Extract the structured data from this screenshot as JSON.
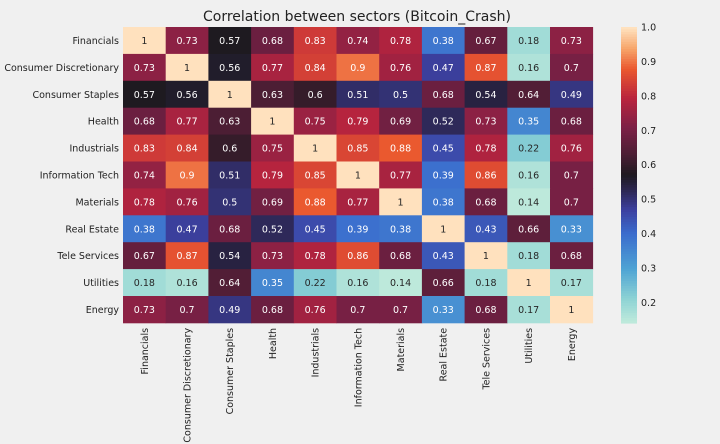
{
  "chart_data": {
    "type": "heatmap",
    "title": "Correlation between sectors (Bitcoin_Crash)",
    "rows": [
      "Financials",
      "Consumer Discretionary",
      "Consumer Staples",
      "Health",
      "Industrials",
      "Information Tech",
      "Materials",
      "Real Estate",
      "Tele Services",
      "Utilities",
      "Energy"
    ],
    "columns": [
      "Financials",
      "Consumer Discretionary",
      "Consumer Staples",
      "Health",
      "Industrials",
      "Information Tech",
      "Materials",
      "Real Estate",
      "Tele Services",
      "Utilities",
      "Energy"
    ],
    "values": [
      [
        1,
        0.73,
        0.57,
        0.68,
        0.83,
        0.74,
        0.78,
        0.38,
        0.67,
        0.18,
        0.73
      ],
      [
        0.73,
        1,
        0.56,
        0.77,
        0.84,
        0.9,
        0.76,
        0.47,
        0.87,
        0.16,
        0.7
      ],
      [
        0.57,
        0.56,
        1,
        0.63,
        0.6,
        0.51,
        0.5,
        0.68,
        0.54,
        0.64,
        0.49
      ],
      [
        0.68,
        0.77,
        0.63,
        1,
        0.75,
        0.79,
        0.69,
        0.52,
        0.73,
        0.35,
        0.68
      ],
      [
        0.83,
        0.84,
        0.6,
        0.75,
        1,
        0.85,
        0.88,
        0.45,
        0.78,
        0.22,
        0.76
      ],
      [
        0.74,
        0.9,
        0.51,
        0.79,
        0.85,
        1,
        0.77,
        0.39,
        0.86,
        0.16,
        0.7
      ],
      [
        0.78,
        0.76,
        0.5,
        0.69,
        0.88,
        0.77,
        1,
        0.38,
        0.68,
        0.14,
        0.7
      ],
      [
        0.38,
        0.47,
        0.68,
        0.52,
        0.45,
        0.39,
        0.38,
        1,
        0.43,
        0.66,
        0.33
      ],
      [
        0.67,
        0.87,
        0.54,
        0.73,
        0.78,
        0.86,
        0.68,
        0.43,
        1,
        0.18,
        0.68
      ],
      [
        0.18,
        0.16,
        0.64,
        0.35,
        0.22,
        0.16,
        0.14,
        0.66,
        0.18,
        1,
        0.17
      ],
      [
        0.73,
        0.7,
        0.49,
        0.68,
        0.76,
        0.7,
        0.7,
        0.33,
        0.68,
        0.17,
        1
      ]
    ],
    "colorbar": {
      "range": [
        0.14,
        1.0
      ],
      "ticks": [
        0.2,
        0.3,
        0.4,
        0.5,
        0.6,
        0.7,
        0.8,
        0.9,
        1.0
      ],
      "tick_labels": [
        "0.2",
        "0.3",
        "0.4",
        "0.5",
        "0.6",
        "0.7",
        "0.8",
        "0.9",
        "1.0"
      ]
    },
    "colormap": "icefire",
    "annotations": true,
    "grid": false
  }
}
